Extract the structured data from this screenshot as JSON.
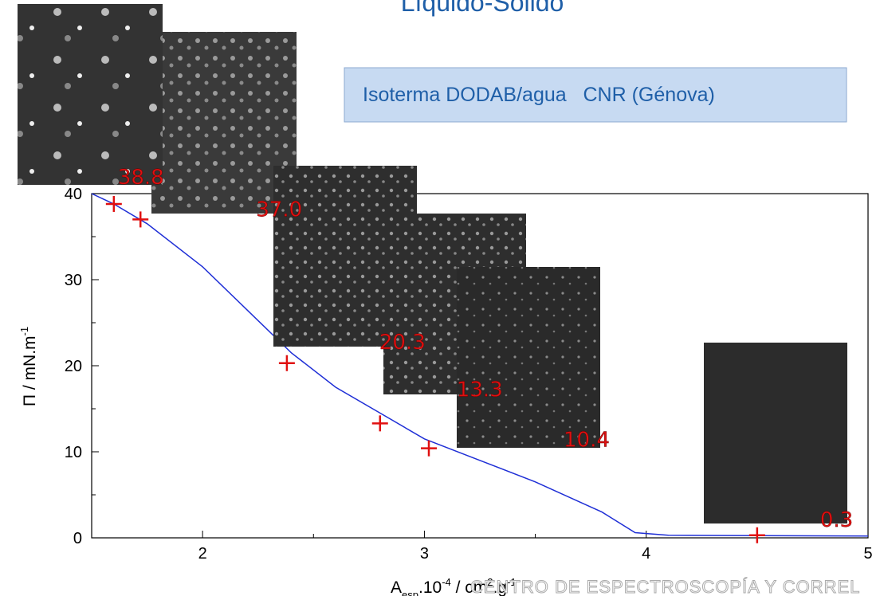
{
  "chart_data": {
    "type": "line",
    "title": "Líquido-Sólido",
    "annotation": "Isoterma DODAB/agua   CNR (Génova)",
    "ylabel": [
      "Π / mN.m",
      "-1"
    ],
    "xlabel": [
      "A",
      "esp",
      ".10",
      "-4",
      " / cm",
      "2",
      ".g",
      "-1"
    ],
    "watermark": "CENTRO DE ESPECTROSCOPÍA Y CORREL",
    "xlim": [
      1.5,
      5
    ],
    "ylim": [
      0,
      40
    ],
    "xticks": [
      2,
      3,
      4,
      5
    ],
    "yticks": [
      0,
      10,
      20,
      30,
      40
    ],
    "xminor": [
      2.5,
      3.5,
      4.5
    ],
    "yminor": [
      5,
      15,
      25,
      35
    ],
    "curve": {
      "color": "#1f2fd6",
      "x": [
        1.5,
        1.6,
        1.75,
        2.0,
        2.2,
        2.4,
        2.6,
        2.8,
        3.0,
        3.2,
        3.5,
        3.8,
        3.95,
        4.1,
        5.0
      ],
      "values": [
        40,
        38.8,
        36.5,
        31.5,
        26.5,
        21.5,
        17.5,
        14.5,
        11.5,
        9.5,
        6.5,
        3,
        0.6,
        0.3,
        0.2
      ]
    },
    "points": {
      "color": "#e01010",
      "x": [
        1.6,
        1.72,
        2.38,
        2.8,
        3.02,
        4.5
      ],
      "values": [
        38.8,
        37.0,
        20.3,
        13.3,
        10.4,
        0.3
      ],
      "value_labels": [
        "38.8",
        "37.0",
        "20.3",
        "13.3",
        "10.4",
        "0.3"
      ]
    }
  }
}
